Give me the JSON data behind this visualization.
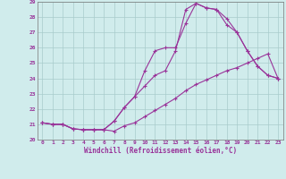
{
  "xlabel": "Windchill (Refroidissement éolien,°C)",
  "bg_color": "#d0ecec",
  "grid_color": "#a8cccc",
  "line_color": "#993399",
  "xlim": [
    -0.5,
    23.5
  ],
  "ylim": [
    20,
    29
  ],
  "xticks": [
    0,
    1,
    2,
    3,
    4,
    5,
    6,
    7,
    8,
    9,
    10,
    11,
    12,
    13,
    14,
    15,
    16,
    17,
    18,
    19,
    20,
    21,
    22,
    23
  ],
  "yticks": [
    20,
    21,
    22,
    23,
    24,
    25,
    26,
    27,
    28,
    29
  ],
  "curve1_x": [
    0,
    1,
    2,
    3,
    4,
    5,
    6,
    7,
    8,
    9,
    10,
    11,
    12,
    13,
    14,
    15,
    16,
    17,
    18,
    19,
    20,
    21,
    22,
    23
  ],
  "curve1_y": [
    21.1,
    21.0,
    21.0,
    20.7,
    20.65,
    20.65,
    20.65,
    20.55,
    20.9,
    21.1,
    21.5,
    21.9,
    22.3,
    22.7,
    23.2,
    23.6,
    23.9,
    24.2,
    24.5,
    24.7,
    25.0,
    25.3,
    25.6,
    24.0
  ],
  "curve2_x": [
    0,
    1,
    2,
    3,
    4,
    5,
    6,
    7,
    8,
    9,
    10,
    11,
    12,
    13,
    14,
    15,
    16,
    17,
    18,
    19,
    20,
    21,
    22,
    23
  ],
  "curve2_y": [
    21.1,
    21.0,
    21.0,
    20.7,
    20.65,
    20.65,
    20.65,
    21.2,
    22.1,
    22.8,
    23.5,
    24.2,
    24.5,
    25.8,
    28.5,
    28.9,
    28.6,
    28.5,
    27.5,
    27.0,
    25.8,
    24.8,
    24.2,
    24.0
  ],
  "curve3_x": [
    0,
    1,
    2,
    3,
    4,
    5,
    6,
    7,
    8,
    9,
    10,
    11,
    12,
    13,
    14,
    15,
    16,
    17,
    18,
    19,
    20,
    21,
    22,
    23
  ],
  "curve3_y": [
    21.1,
    21.0,
    21.0,
    20.7,
    20.65,
    20.65,
    20.65,
    21.2,
    22.1,
    22.8,
    24.5,
    25.8,
    26.0,
    26.0,
    27.6,
    28.9,
    28.6,
    28.5,
    27.9,
    27.0,
    25.8,
    24.8,
    24.2,
    24.0
  ]
}
